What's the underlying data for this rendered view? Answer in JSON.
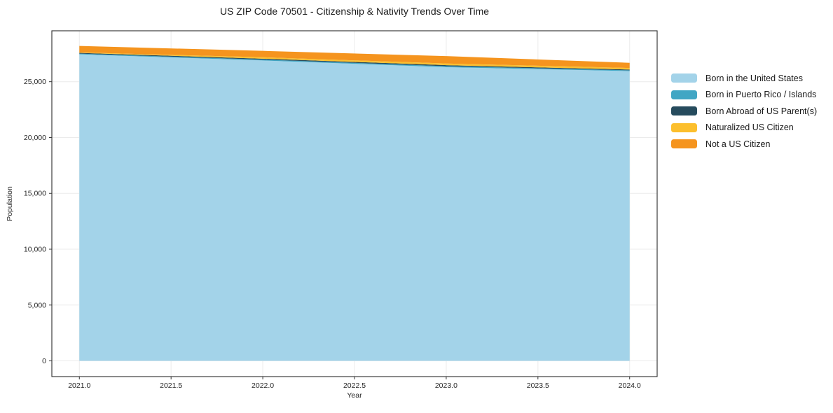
{
  "chart_data": {
    "type": "area",
    "stacked": true,
    "title": "US ZIP Code 70501 - Citizenship & Nativity Trends Over Time",
    "xlabel": "Year",
    "ylabel": "Population",
    "x": [
      2021,
      2022,
      2023,
      2024
    ],
    "series": [
      {
        "name": "Born in the United States",
        "color": "#a3d3e9",
        "values": [
          27450,
          26900,
          26300,
          25950
        ]
      },
      {
        "name": "Born in Puerto Rico / Islands",
        "color": "#41a6c4",
        "values": [
          60,
          80,
          90,
          70
        ]
      },
      {
        "name": "Born Abroad of US Parent(s)",
        "color": "#264b5d",
        "values": [
          70,
          80,
          90,
          70
        ]
      },
      {
        "name": "Naturalized US Citizen",
        "color": "#fcbf2d",
        "values": [
          40,
          130,
          150,
          140
        ]
      },
      {
        "name": "Not a US Citizen",
        "color": "#f5941e",
        "values": [
          580,
          570,
          660,
          460
        ]
      }
    ],
    "totals_by_year": [
      28200,
      27760,
      27290,
      26690
    ],
    "xlim": [
      2020.85,
      2024.15
    ],
    "ylim": [
      -1407,
      29557
    ],
    "x_ticks": [
      {
        "v": 2021.0,
        "label": "2021.0"
      },
      {
        "v": 2021.5,
        "label": "2021.5"
      },
      {
        "v": 2022.0,
        "label": "2022.0"
      },
      {
        "v": 2022.5,
        "label": "2022.5"
      },
      {
        "v": 2023.0,
        "label": "2023.0"
      },
      {
        "v": 2023.5,
        "label": "2023.5"
      },
      {
        "v": 2024.0,
        "label": "2024.0"
      }
    ],
    "y_ticks": [
      {
        "v": 0,
        "label": "0"
      },
      {
        "v": 5000,
        "label": "5,000"
      },
      {
        "v": 10000,
        "label": "10,000"
      },
      {
        "v": 15000,
        "label": "15,000"
      },
      {
        "v": 20000,
        "label": "20,000"
      },
      {
        "v": 25000,
        "label": "25,000"
      }
    ],
    "grid": true,
    "legend_position": "right-outside",
    "style": {
      "background": "#ffffff",
      "grid_color": "#ebebeb",
      "spine_color": "#2b2b2b",
      "tick_color": "#333333",
      "text_color": "#1a1a1a"
    }
  }
}
